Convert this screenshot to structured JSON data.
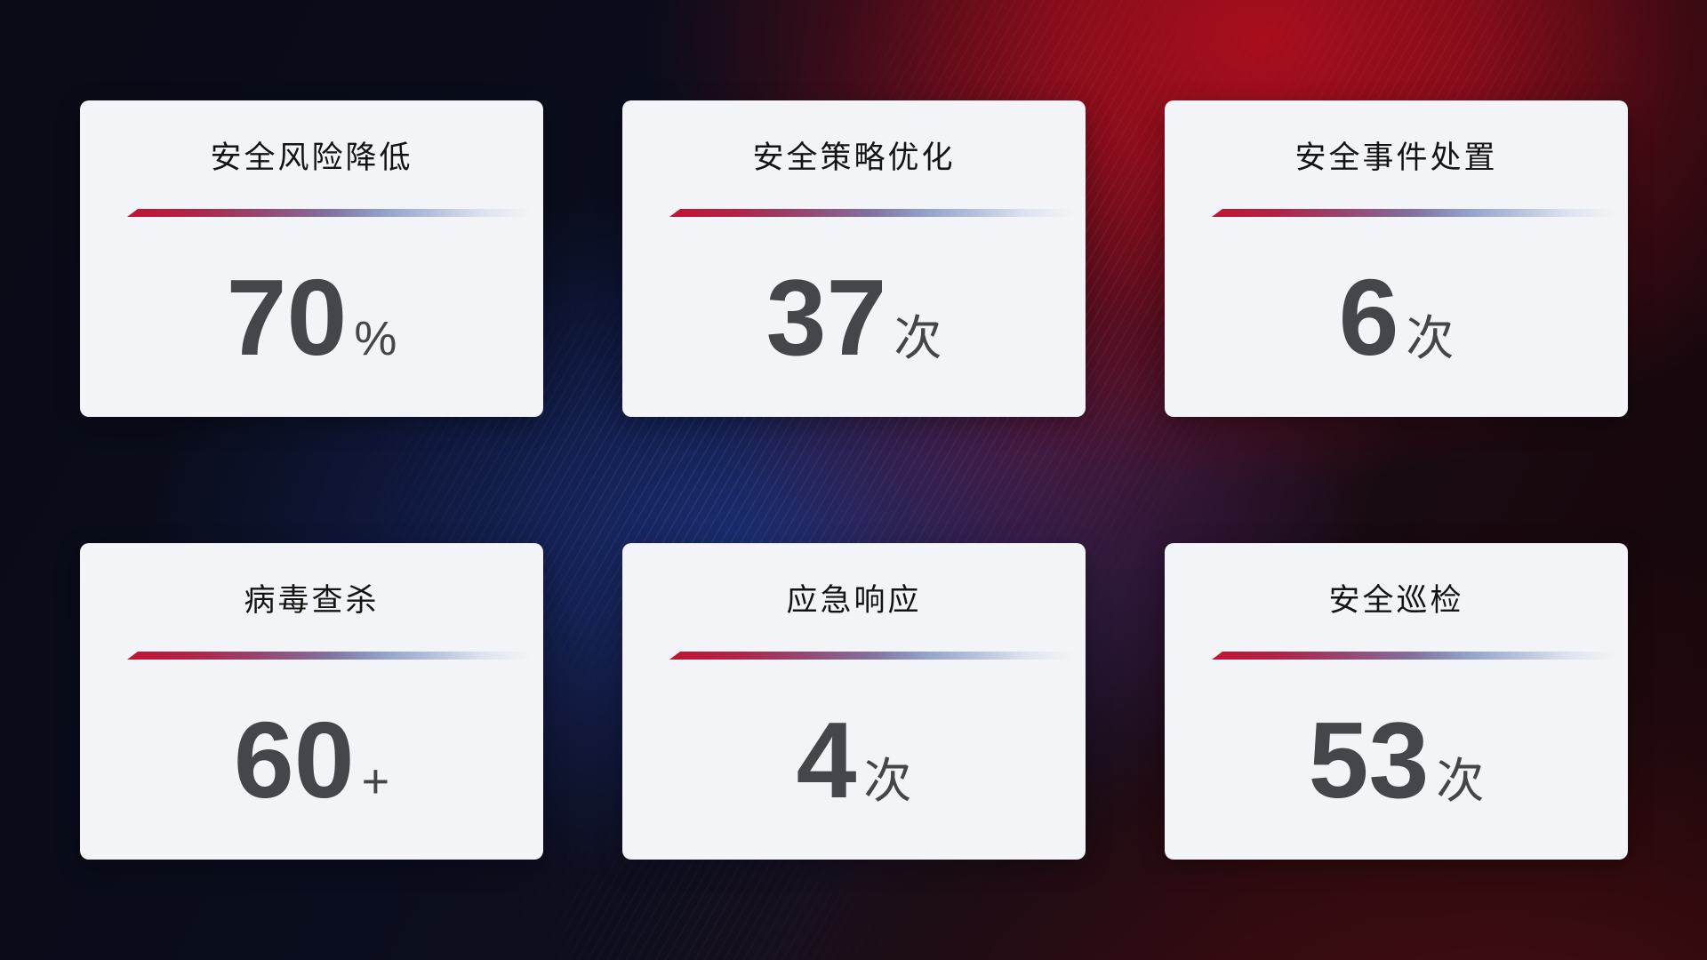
{
  "cards": [
    {
      "title": "安全风险降低",
      "value": "70",
      "unit": "%"
    },
    {
      "title": "安全策略优化",
      "value": "37",
      "unit": "次"
    },
    {
      "title": "安全事件处置",
      "value": "6",
      "unit": "次"
    },
    {
      "title": "病毒查杀",
      "value": "60",
      "unit": "+"
    },
    {
      "title": "应急响应",
      "value": "4",
      "unit": "次"
    },
    {
      "title": "安全巡检",
      "value": "53",
      "unit": "次"
    }
  ],
  "colors": {
    "card_background": "#f3f4f7",
    "title_text": "#141414",
    "value_text": "#45464b",
    "divider_gradient_start": "#c31433",
    "divider_gradient_mid": "#81719f",
    "divider_gradient_end": "#dde3ee",
    "background_dark_navy": "#0a0d1c",
    "background_red": "#a01320",
    "background_blue": "#1e3482",
    "background_maroon": "#2a0a0d"
  }
}
